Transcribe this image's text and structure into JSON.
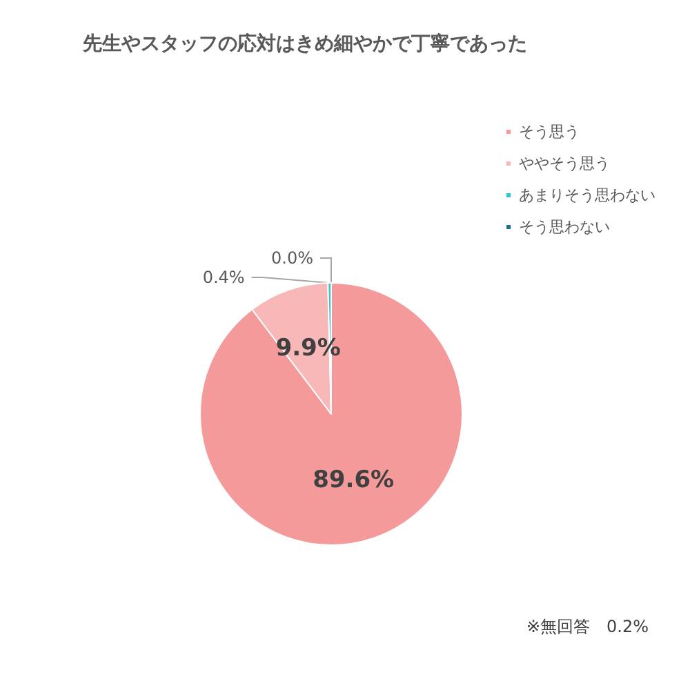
{
  "chart_data": {
    "type": "pie",
    "title": "先生やスタッフの応対はきめ細やかで丁寧であった",
    "categories": [
      "そう思う",
      "ややそう思う",
      "あまりそう思わない",
      "そう思わない"
    ],
    "values": [
      89.6,
      9.9,
      0.4,
      0.0
    ],
    "colors": [
      "#f59a9a",
      "#f8b8b8",
      "#33c3d3",
      "#1f6e8c"
    ],
    "value_labels": [
      "89.6%",
      "9.9%",
      "0.4%",
      "0.0%"
    ],
    "legend": "top right",
    "annotations": [
      "※無回答　0.2%"
    ]
  }
}
